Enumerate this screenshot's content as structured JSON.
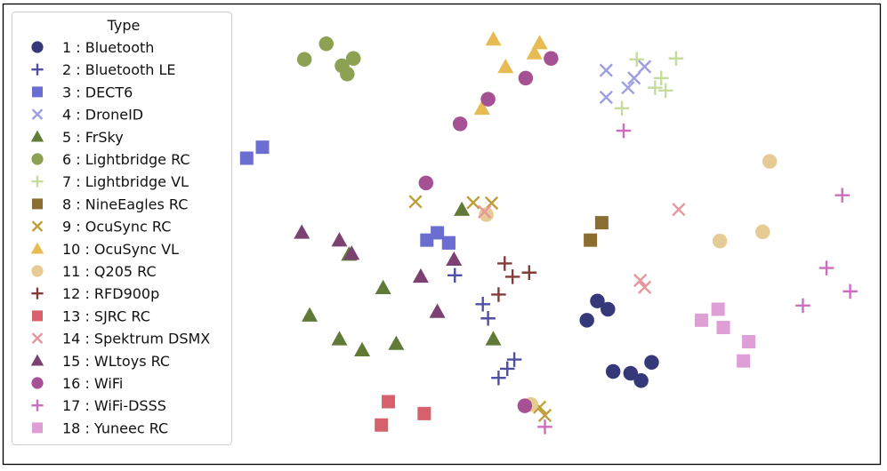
{
  "chart_data": {
    "type": "scatter",
    "title": "",
    "xlabel": "",
    "ylabel": "",
    "axes_ticks": "none",
    "grid": false,
    "xlim": [
      0,
      100
    ],
    "ylim": [
      0,
      100
    ],
    "legend": {
      "title": "Type",
      "position": "upper-left",
      "entries": [
        {
          "id": 1,
          "label": "1 : Bluetooth",
          "marker": "circle",
          "color": "#353879"
        },
        {
          "id": 2,
          "label": "2 : Bluetooth LE",
          "marker": "plus",
          "color": "#4f4fa6"
        },
        {
          "id": 3,
          "label": "3 : DECT6",
          "marker": "square",
          "color": "#6b6ed0"
        },
        {
          "id": 4,
          "label": "4 : DroneID",
          "marker": "x",
          "color": "#9c9edf"
        },
        {
          "id": 5,
          "label": "5 : FrSky",
          "marker": "triangle",
          "color": "#627a38"
        },
        {
          "id": 6,
          "label": "6 : Lightbridge RC",
          "marker": "circle",
          "color": "#8ca252"
        },
        {
          "id": 7,
          "label": "7 : Lightbridge VL",
          "marker": "plus",
          "color": "#c6dc9e"
        },
        {
          "id": 8,
          "label": "8 : NineEagles RC",
          "marker": "square",
          "color": "#8c6d31"
        },
        {
          "id": 9,
          "label": "9 : OcuSync RC",
          "marker": "x",
          "color": "#bd9e39"
        },
        {
          "id": 10,
          "label": "10 : OcuSync VL",
          "marker": "triangle",
          "color": "#e7ba52"
        },
        {
          "id": 11,
          "label": "11 : Q205 RC",
          "marker": "circle",
          "color": "#e7cb94"
        },
        {
          "id": 12,
          "label": "12 : RFD900p",
          "marker": "plus",
          "color": "#843c39"
        },
        {
          "id": 13,
          "label": "13 : SJRC RC",
          "marker": "square",
          "color": "#d6616b"
        },
        {
          "id": 14,
          "label": "14 : Spektrum DSMX",
          "marker": "x",
          "color": "#e7969c"
        },
        {
          "id": 15,
          "label": "15 : WLtoys RC",
          "marker": "triangle",
          "color": "#7b4173"
        },
        {
          "id": 16,
          "label": "16 : WiFi",
          "marker": "circle",
          "color": "#a55194"
        },
        {
          "id": 17,
          "label": "17 : WiFi-DSSS",
          "marker": "plus",
          "color": "#ce6dbd"
        },
        {
          "id": 18,
          "label": "18 : Yuneec RC",
          "marker": "square",
          "color": "#de9ed6"
        }
      ]
    },
    "clusters": [
      {
        "series": 1,
        "points": [
          [
            66.6,
            31.2
          ],
          [
            67.8,
            35.4
          ],
          [
            69,
            33.6
          ],
          [
            71.6,
            19.6
          ],
          [
            74,
            22
          ],
          [
            72.8,
            18
          ],
          [
            69.6,
            20
          ]
        ]
      },
      {
        "series": 2,
        "points": [
          [
            54.7,
            34.7
          ],
          [
            57.5,
            20.6
          ],
          [
            51.5,
            41
          ],
          [
            55.3,
            31.6
          ],
          [
            58.3,
            22.6
          ],
          [
            56.5,
            18.6
          ]
        ]
      },
      {
        "series": 3,
        "points": [
          [
            27.7,
            66.6
          ],
          [
            29.5,
            69
          ],
          [
            48.3,
            48.7
          ],
          [
            50.8,
            48.1
          ],
          [
            49.5,
            50.3
          ],
          [
            50.8,
            48.1
          ]
        ]
      },
      {
        "series": 4,
        "points": [
          [
            68.8,
            85.8
          ],
          [
            71.3,
            82
          ],
          [
            73.2,
            86.6
          ],
          [
            68.8,
            79.9
          ],
          [
            72,
            84.1
          ]
        ]
      },
      {
        "series": 5,
        "points": [
          [
            34.9,
            32.3
          ],
          [
            38.3,
            27.1
          ],
          [
            40.9,
            24.7
          ],
          [
            44.8,
            26.1
          ],
          [
            43.3,
            38.3
          ],
          [
            52.3,
            55.4
          ],
          [
            55.9,
            27.1
          ],
          [
            39.4,
            45.6
          ]
        ]
      },
      {
        "series": 6,
        "points": [
          [
            36.8,
            91.6
          ],
          [
            39.9,
            88.4
          ],
          [
            38.6,
            86.8
          ],
          [
            34.3,
            88.2
          ],
          [
            39.2,
            85
          ]
        ]
      },
      {
        "series": 7,
        "points": [
          [
            72.3,
            88.2
          ],
          [
            75.1,
            84.1
          ],
          [
            76.8,
            88.4
          ],
          [
            75.6,
            81.4
          ],
          [
            70.6,
            77.5
          ],
          [
            74.4,
            82
          ]
        ]
      },
      {
        "series": 8,
        "points": [
          [
            67,
            48.7
          ],
          [
            68.3,
            52.5
          ]
        ]
      },
      {
        "series": 9,
        "points": [
          [
            47,
            57.1
          ],
          [
            55.7,
            56.8
          ],
          [
            53.6,
            56.9
          ],
          [
            61.8,
            10.4
          ],
          [
            61.2,
            12.2
          ]
        ]
      },
      {
        "series": 10,
        "points": [
          [
            55.9,
            92.6
          ],
          [
            61.2,
            91.8
          ],
          [
            57.3,
            86.6
          ],
          [
            60.6,
            89.6
          ],
          [
            54.6,
            77.5
          ]
        ]
      },
      {
        "series": 11,
        "points": [
          [
            87.5,
            65.9
          ],
          [
            81.8,
            48.5
          ],
          [
            86.7,
            50.5
          ],
          [
            55.1,
            54.3
          ],
          [
            60.2,
            12.8
          ]
        ]
      },
      {
        "series": 12,
        "points": [
          [
            57.2,
            43.6
          ],
          [
            58.1,
            40.7
          ],
          [
            60,
            41.6
          ],
          [
            56.5,
            36.8
          ]
        ]
      },
      {
        "series": 13,
        "points": [
          [
            43.9,
            13.4
          ],
          [
            48,
            10.8
          ],
          [
            43.1,
            8.3
          ]
        ]
      },
      {
        "series": 14,
        "points": [
          [
            77.1,
            55.4
          ],
          [
            73.2,
            38.4
          ],
          [
            72.7,
            39.9
          ],
          [
            54.9,
            54.9
          ]
        ]
      },
      {
        "series": 15,
        "points": [
          [
            34,
            50.4
          ],
          [
            38.3,
            48.7
          ],
          [
            39.7,
            45.8
          ],
          [
            51.4,
            44.5
          ],
          [
            47.6,
            40.8
          ],
          [
            49.5,
            33.1
          ]
        ]
      },
      {
        "series": 16,
        "points": [
          [
            52.1,
            74.1
          ],
          [
            55.3,
            79.5
          ],
          [
            59.6,
            84.1
          ],
          [
            62.5,
            88.4
          ],
          [
            48.2,
            61.2
          ],
          [
            59.5,
            12.5
          ]
        ]
      },
      {
        "series": 17,
        "points": [
          [
            95.8,
            58.5
          ],
          [
            94,
            42.6
          ],
          [
            91.3,
            34.4
          ],
          [
            96.7,
            37.5
          ],
          [
            70.8,
            72.6
          ],
          [
            61.8,
            7.9
          ]
        ]
      },
      {
        "series": 18,
        "points": [
          [
            81.6,
            33.6
          ],
          [
            85.1,
            26.5
          ],
          [
            84.5,
            22.3
          ],
          [
            82.2,
            29.6
          ],
          [
            79.7,
            31.2
          ]
        ]
      }
    ]
  }
}
